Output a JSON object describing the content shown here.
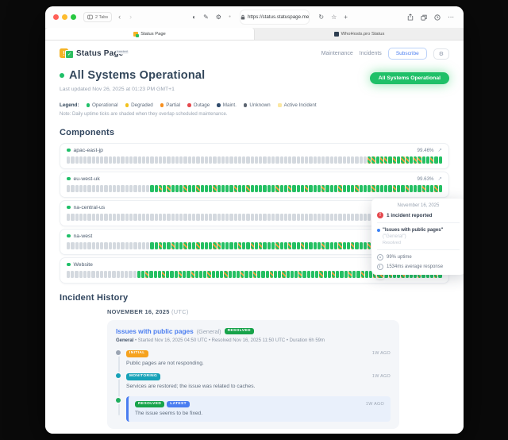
{
  "browser": {
    "tabs_count": "2 Tabs",
    "url": "https://status.statuspage.me",
    "tab_active": "Status Page",
    "tab_inactive": "WhoHosts.pro Status"
  },
  "header": {
    "brand": "Status Page",
    "brand_badge": "hosted",
    "nav_maintenance": "Maintenance",
    "nav_incidents": "Incidents",
    "subscribe": "Subscribe",
    "gear": "⚙"
  },
  "status": {
    "title": "All Systems Operational",
    "last_updated": "Last updated Nov 26, 2025 at 01:23 PM GMT+1",
    "badge": "All Systems Operational",
    "accent_green": "#1fc068"
  },
  "legend": {
    "label": "Legend:",
    "items": [
      {
        "label": "Operational",
        "color": "#1fc068"
      },
      {
        "label": "Degraded",
        "color": "#f2c21c"
      },
      {
        "label": "Partial",
        "color": "#f78f1e"
      },
      {
        "label": "Outage",
        "color": "#e5484d"
      },
      {
        "label": "Maint.",
        "color": "#2e4a6b"
      },
      {
        "label": "Unknown",
        "color": "#5b6470"
      },
      {
        "label": "Active Incident",
        "color": "#fbe7a2"
      }
    ],
    "note": "Note: Daily uptime ticks are shaded when they overlap scheduled maintenance."
  },
  "components": {
    "title": "Components",
    "dot_color": "#1fc068",
    "expand_icon": "↗",
    "rows": [
      {
        "name": "apac-east-jp",
        "uptime": "99.46%",
        "ticks": "uuuuuuuuuuuuuuuuuuuuuuuuuuuuuuuuuuuuuuuuuuuuuuuuuuuuuuuuuuuuuuuuuuuuuuuussossosossossoosoo"
      },
      {
        "name": "eu-west-uk",
        "uptime": "99.63%",
        "ticks": "uuuuuuuuuuuuuuuuuuuuoososooosoosooosoooosoosoooooosoosooosooosooosooosooosoooosoosooosooso"
      },
      {
        "name": "na-central-us",
        "uptime": "",
        "ticks": "uuuuuuuuuuuuuuuuuuuuuuuuuuuuuuuuuuuuuuuuuuuuuuuuuuuuuuuuuuuuuuuuuuuuuuuuuuuuuuuuuuuuuuuooo"
      },
      {
        "name": "na-west",
        "uptime": "",
        "ticks": "uuuuuuuuuuuuuuuuuuuuoosoosoosoosooossoooosoososooosoosoosoooosooosoosooosoosooosooosoosooo"
      },
      {
        "name": "Website",
        "uptime": "",
        "ticks": "uuuuuuuuuuuuuuuuuoosooosooosoosooosooosooosoosooosoosooosoooosoosooosoosoosho soosooosoooso"
      }
    ]
  },
  "tooltip": {
    "date": "November 16, 2025",
    "alert_glyph": "!",
    "incident_count": "1 incident reported",
    "incident_title": "\"Issues with public pages\"",
    "incident_scope": "(\"General\")",
    "incident_status": "Resolved",
    "uptime": "99% uptime",
    "response": "1534ms average response"
  },
  "incident_history": {
    "title": "Incident History",
    "date_heading": "NOVEMBER 16, 2025",
    "date_suffix": "(UTC)",
    "incident": {
      "title": "Issues with public pages",
      "scope": "(General)",
      "status_badge": "RESOLVED",
      "status_badge_color": "#17a34a",
      "meta_component": "General",
      "meta_rest": " • Started Nov 16, 2025 04:50 UTC • Resolved Nov 16, 2025 11:50 UTC • Duration 6h 59m",
      "updates": [
        {
          "badge": "INITIAL",
          "badge_color": "#f6a21e",
          "dot_color": "#9aa4b2",
          "time": "1W AGO",
          "text": "Public pages are not responding."
        },
        {
          "badge": "MONITORING",
          "badge_color": "#17a2b8",
          "dot_color": "#17a2b8",
          "time": "1W AGO",
          "text": "Services are restored; the issue was related to caches."
        },
        {
          "badge": "RESOLVED",
          "badge_color": "#17a34a",
          "badge2": "LATEST",
          "badge2_color": "#4a7df0",
          "dot_color": "#1fae5e",
          "time": "1W AGO",
          "text": "The issue seems to be fixed."
        }
      ]
    }
  }
}
